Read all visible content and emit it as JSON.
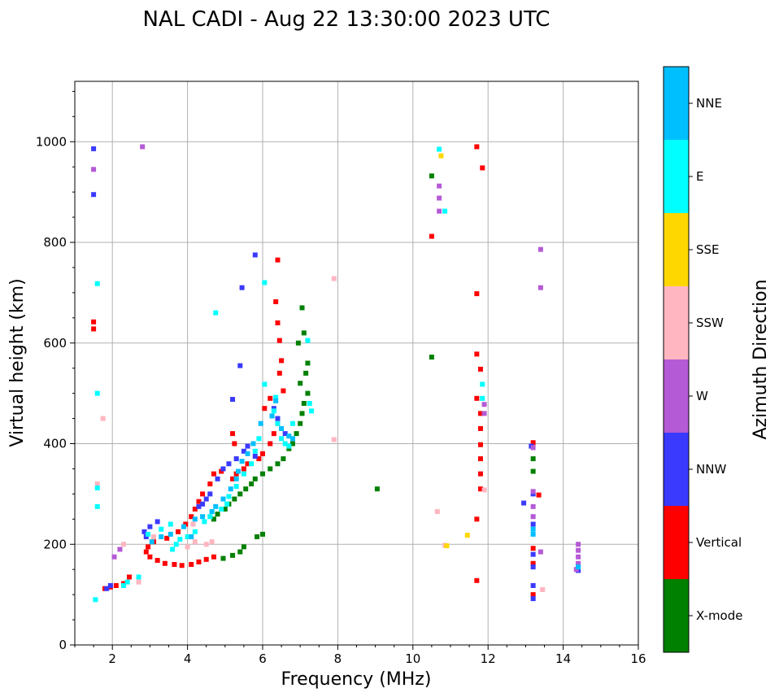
{
  "chart_data": {
    "type": "scatter",
    "title": "NAL CADI - Aug 22 13:30:00 2023 UTC",
    "xlabel": "Frequency (MHz)",
    "ylabel": "Virtual height (km)",
    "xlim": [
      1,
      16
    ],
    "ylim": [
      0,
      1120
    ],
    "xticks": [
      2,
      4,
      6,
      8,
      10,
      12,
      14,
      16
    ],
    "yticks": [
      0,
      200,
      400,
      600,
      800,
      1000
    ],
    "grid": true,
    "colorbar": {
      "label": "Azimuth Direction",
      "categories": [
        "X-mode",
        "Vertical",
        "NNW",
        "W",
        "SSW",
        "SSE",
        "E",
        "NNE"
      ],
      "colors": [
        "#008000",
        "#ff0000",
        "#3a3aff",
        "#b55ad6",
        "#ffb6c1",
        "#ffd700",
        "#00ffff",
        "#00bfff"
      ]
    },
    "series": [
      {
        "name": "X-mode",
        "points": [
          [
            7.05,
            670
          ],
          [
            7.1,
            620
          ],
          [
            6.95,
            600
          ],
          [
            7.2,
            560
          ],
          [
            7.15,
            540
          ],
          [
            7.0,
            520
          ],
          [
            7.2,
            500
          ],
          [
            7.1,
            480
          ],
          [
            7.05,
            460
          ],
          [
            7.0,
            440
          ],
          [
            6.9,
            420
          ],
          [
            6.8,
            400
          ],
          [
            6.7,
            390
          ],
          [
            6.55,
            370
          ],
          [
            6.4,
            360
          ],
          [
            6.2,
            350
          ],
          [
            6.0,
            340
          ],
          [
            5.8,
            330
          ],
          [
            5.7,
            320
          ],
          [
            5.55,
            310
          ],
          [
            5.4,
            300
          ],
          [
            5.25,
            290
          ],
          [
            5.1,
            280
          ],
          [
            5.0,
            270
          ],
          [
            4.8,
            260
          ],
          [
            4.7,
            250
          ],
          [
            5.5,
            195
          ],
          [
            5.4,
            185
          ],
          [
            5.2,
            178
          ],
          [
            4.95,
            172
          ],
          [
            6.0,
            220
          ],
          [
            5.85,
            215
          ],
          [
            10.5,
            572
          ],
          [
            10.5,
            932
          ],
          [
            9.05,
            310
          ],
          [
            13.2,
            370
          ],
          [
            13.2,
            345
          ]
        ]
      },
      {
        "name": "Vertical",
        "points": [
          [
            1.5,
            642
          ],
          [
            1.5,
            628
          ],
          [
            6.4,
            765
          ],
          [
            6.35,
            682
          ],
          [
            6.4,
            640
          ],
          [
            6.45,
            605
          ],
          [
            6.5,
            565
          ],
          [
            6.45,
            540
          ],
          [
            6.55,
            505
          ],
          [
            6.2,
            490
          ],
          [
            6.05,
            470
          ],
          [
            6.4,
            440
          ],
          [
            6.3,
            420
          ],
          [
            6.2,
            400
          ],
          [
            6.0,
            380
          ],
          [
            5.9,
            370
          ],
          [
            5.6,
            360
          ],
          [
            5.5,
            350
          ],
          [
            5.3,
            340
          ],
          [
            5.2,
            330
          ],
          [
            4.9,
            345
          ],
          [
            4.7,
            340
          ],
          [
            4.6,
            320
          ],
          [
            4.4,
            300
          ],
          [
            4.3,
            285
          ],
          [
            4.2,
            270
          ],
          [
            4.1,
            255
          ],
          [
            3.95,
            240
          ],
          [
            3.75,
            225
          ],
          [
            3.45,
            212
          ],
          [
            3.1,
            205
          ],
          [
            2.95,
            195
          ],
          [
            2.9,
            185
          ],
          [
            3.0,
            175
          ],
          [
            3.2,
            168
          ],
          [
            3.4,
            162
          ],
          [
            3.65,
            160
          ],
          [
            3.85,
            158
          ],
          [
            4.1,
            160
          ],
          [
            4.3,
            165
          ],
          [
            4.5,
            170
          ],
          [
            4.7,
            175
          ],
          [
            5.2,
            420
          ],
          [
            5.25,
            400
          ],
          [
            2.45,
            135
          ],
          [
            2.3,
            122
          ],
          [
            2.1,
            118
          ],
          [
            1.95,
            115
          ],
          [
            1.8,
            112
          ],
          [
            10.5,
            812
          ],
          [
            11.7,
            990
          ],
          [
            11.85,
            948
          ],
          [
            11.7,
            698
          ],
          [
            11.7,
            578
          ],
          [
            11.8,
            548
          ],
          [
            11.7,
            490
          ],
          [
            11.8,
            460
          ],
          [
            11.8,
            430
          ],
          [
            11.8,
            398
          ],
          [
            11.8,
            370
          ],
          [
            11.8,
            340
          ],
          [
            11.8,
            310
          ],
          [
            11.7,
            250
          ],
          [
            11.7,
            128
          ],
          [
            13.2,
            402
          ],
          [
            13.2,
            192
          ],
          [
            13.2,
            162
          ],
          [
            13.2,
            100
          ],
          [
            13.35,
            298
          ]
        ]
      },
      {
        "name": "NNW",
        "points": [
          [
            1.5,
            986
          ],
          [
            1.5,
            895
          ],
          [
            5.8,
            775
          ],
          [
            5.45,
            710
          ],
          [
            5.4,
            555
          ],
          [
            5.2,
            488
          ],
          [
            5.5,
            385
          ],
          [
            5.3,
            370
          ],
          [
            5.1,
            360
          ],
          [
            4.95,
            350
          ],
          [
            4.8,
            330
          ],
          [
            4.6,
            300
          ],
          [
            4.5,
            290
          ],
          [
            4.4,
            280
          ],
          [
            4.3,
            275
          ],
          [
            5.8,
            375
          ],
          [
            5.6,
            395
          ],
          [
            6.6,
            420
          ],
          [
            6.4,
            450
          ],
          [
            6.3,
            470
          ],
          [
            3.2,
            245
          ],
          [
            3.0,
            235
          ],
          [
            2.85,
            225
          ],
          [
            2.9,
            215
          ],
          [
            1.95,
            118
          ],
          [
            1.85,
            112
          ],
          [
            13.15,
            395
          ],
          [
            13.2,
            300
          ],
          [
            13.2,
            240
          ],
          [
            13.2,
            180
          ],
          [
            13.2,
            155
          ],
          [
            13.2,
            118
          ],
          [
            13.2,
            92
          ],
          [
            14.4,
            158
          ],
          [
            14.4,
            148
          ],
          [
            12.95,
            282
          ]
        ]
      },
      {
        "name": "W",
        "points": [
          [
            2.8,
            990
          ],
          [
            1.5,
            945
          ],
          [
            2.2,
            190
          ],
          [
            2.05,
            175
          ],
          [
            10.7,
            912
          ],
          [
            10.7,
            888
          ],
          [
            10.7,
            862
          ],
          [
            11.9,
            478
          ],
          [
            11.9,
            460
          ],
          [
            13.2,
            392
          ],
          [
            13.2,
            305
          ],
          [
            13.2,
            275
          ],
          [
            13.2,
            255
          ],
          [
            13.4,
            786
          ],
          [
            13.4,
            710
          ],
          [
            13.4,
            185
          ],
          [
            14.4,
            200
          ],
          [
            14.4,
            188
          ],
          [
            14.4,
            175
          ],
          [
            14.4,
            162
          ],
          [
            14.35,
            150
          ]
        ]
      },
      {
        "name": "SSW",
        "points": [
          [
            1.6,
            320
          ],
          [
            7.9,
            728
          ],
          [
            7.9,
            408
          ],
          [
            1.75,
            450
          ],
          [
            2.3,
            200
          ],
          [
            3.1,
            215
          ],
          [
            4.2,
            205
          ],
          [
            4.0,
            195
          ],
          [
            4.5,
            200
          ],
          [
            4.15,
            240
          ],
          [
            4.65,
            205
          ],
          [
            10.65,
            265
          ],
          [
            10.85,
            198
          ],
          [
            11.9,
            308
          ],
          [
            13.45,
            110
          ],
          [
            2.7,
            125
          ]
        ]
      },
      {
        "name": "SSE",
        "points": [
          [
            10.75,
            972
          ],
          [
            11.45,
            218
          ],
          [
            10.9,
            197
          ]
        ]
      },
      {
        "name": "E",
        "points": [
          [
            1.6,
            718
          ],
          [
            1.6,
            500
          ],
          [
            1.6,
            312
          ],
          [
            1.6,
            275
          ],
          [
            1.55,
            90
          ],
          [
            4.75,
            660
          ],
          [
            6.05,
            720
          ],
          [
            6.05,
            518
          ],
          [
            6.35,
            492
          ],
          [
            6.3,
            465
          ],
          [
            6.4,
            440
          ],
          [
            6.5,
            410
          ],
          [
            6.6,
            400
          ],
          [
            6.7,
            395
          ],
          [
            6.8,
            440
          ],
          [
            7.2,
            605
          ],
          [
            7.25,
            480
          ],
          [
            7.3,
            465
          ],
          [
            5.9,
            410
          ],
          [
            5.8,
            385
          ],
          [
            5.7,
            360
          ],
          [
            5.5,
            340
          ],
          [
            5.3,
            315
          ],
          [
            5.1,
            295
          ],
          [
            5.05,
            280
          ],
          [
            4.9,
            270
          ],
          [
            4.6,
            255
          ],
          [
            4.45,
            245
          ],
          [
            4.2,
            225
          ],
          [
            4.0,
            215
          ],
          [
            3.8,
            210
          ],
          [
            3.7,
            200
          ],
          [
            3.6,
            190
          ],
          [
            3.55,
            240
          ],
          [
            3.3,
            230
          ],
          [
            2.95,
            220
          ],
          [
            2.7,
            135
          ],
          [
            2.4,
            125
          ],
          [
            2.3,
            118
          ],
          [
            10.7,
            985
          ],
          [
            10.85,
            862
          ],
          [
            11.85,
            518
          ],
          [
            11.85,
            490
          ]
        ]
      },
      {
        "name": "NNE",
        "points": [
          [
            6.35,
            485
          ],
          [
            6.25,
            455
          ],
          [
            6.5,
            430
          ],
          [
            6.7,
            415
          ],
          [
            6.8,
            410
          ],
          [
            5.95,
            440
          ],
          [
            5.75,
            400
          ],
          [
            5.6,
            380
          ],
          [
            5.45,
            365
          ],
          [
            5.35,
            345
          ],
          [
            5.3,
            330
          ],
          [
            5.15,
            310
          ],
          [
            4.95,
            290
          ],
          [
            4.75,
            275
          ],
          [
            4.65,
            265
          ],
          [
            4.4,
            255
          ],
          [
            4.2,
            250
          ],
          [
            3.9,
            235
          ],
          [
            3.55,
            220
          ],
          [
            3.3,
            215
          ],
          [
            3.05,
            205
          ],
          [
            4.1,
            215
          ],
          [
            13.2,
            230
          ],
          [
            13.2,
            220
          ],
          [
            14.4,
            155
          ]
        ]
      }
    ]
  }
}
